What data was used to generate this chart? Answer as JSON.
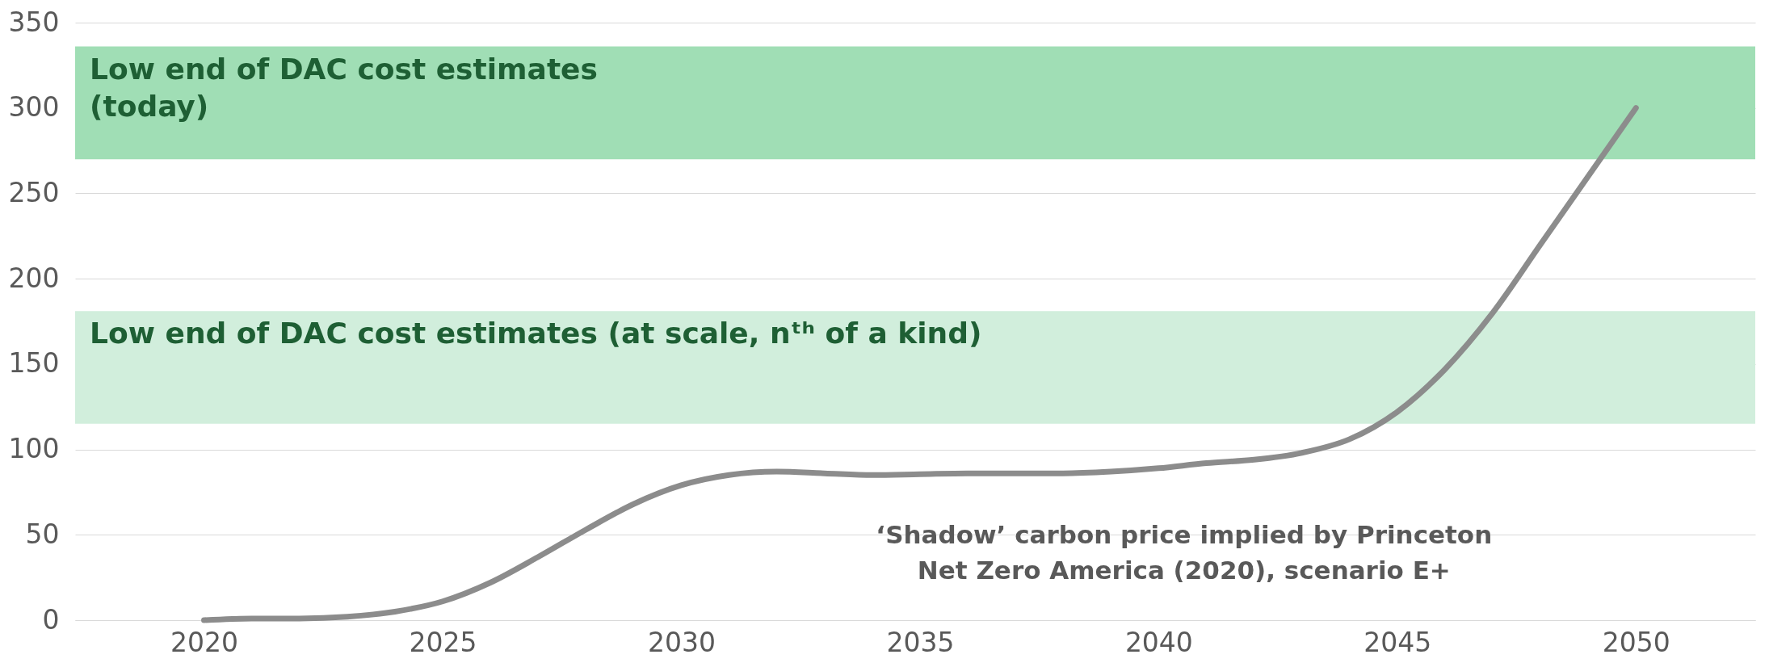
{
  "chart_data": {
    "type": "line",
    "x": [
      2020,
      2021,
      2022,
      2023,
      2024,
      2025,
      2026,
      2027,
      2028,
      2029,
      2030,
      2031,
      2032,
      2033,
      2034,
      2035,
      2036,
      2037,
      2038,
      2039,
      2040,
      2041,
      2042,
      2043,
      2044,
      2045,
      2046,
      2047,
      2048,
      2049,
      2050
    ],
    "series": [
      {
        "color": "#8c8c8c",
        "values": [
          0,
          1,
          1,
          2,
          5,
          11,
          22,
          37,
          53,
          68,
          79,
          85,
          87,
          86,
          85,
          85.5,
          86,
          86,
          86,
          87,
          89,
          92,
          94,
          98,
          106,
          122,
          147,
          180,
          220,
          260,
          300
        ]
      }
    ],
    "xlim": [
      2017.3,
      2052.5
    ],
    "xticks": [
      2020,
      2025,
      2030,
      2035,
      2040,
      2045,
      2050
    ],
    "ylim": [
      0,
      350
    ],
    "yticks": [
      0,
      50,
      100,
      150,
      200,
      250,
      300,
      350
    ],
    "grid": "y",
    "line_style": "solid",
    "marker": "none",
    "bands": [
      {
        "axis": "y",
        "from": 270,
        "to": 336,
        "label": "Low end of DAC cost estimates\n(today)",
        "color": "#a0deb5"
      },
      {
        "axis": "y",
        "from": 115,
        "to": 181,
        "label": "Low end of DAC cost estimates (at scale, nᵗʰ of a kind)",
        "color": "#d1eedc"
      }
    ],
    "annotations": [
      "‘Shadow’ carbon price implied by Princeton\nNet Zero America (2020), scenario E+"
    ]
  }
}
